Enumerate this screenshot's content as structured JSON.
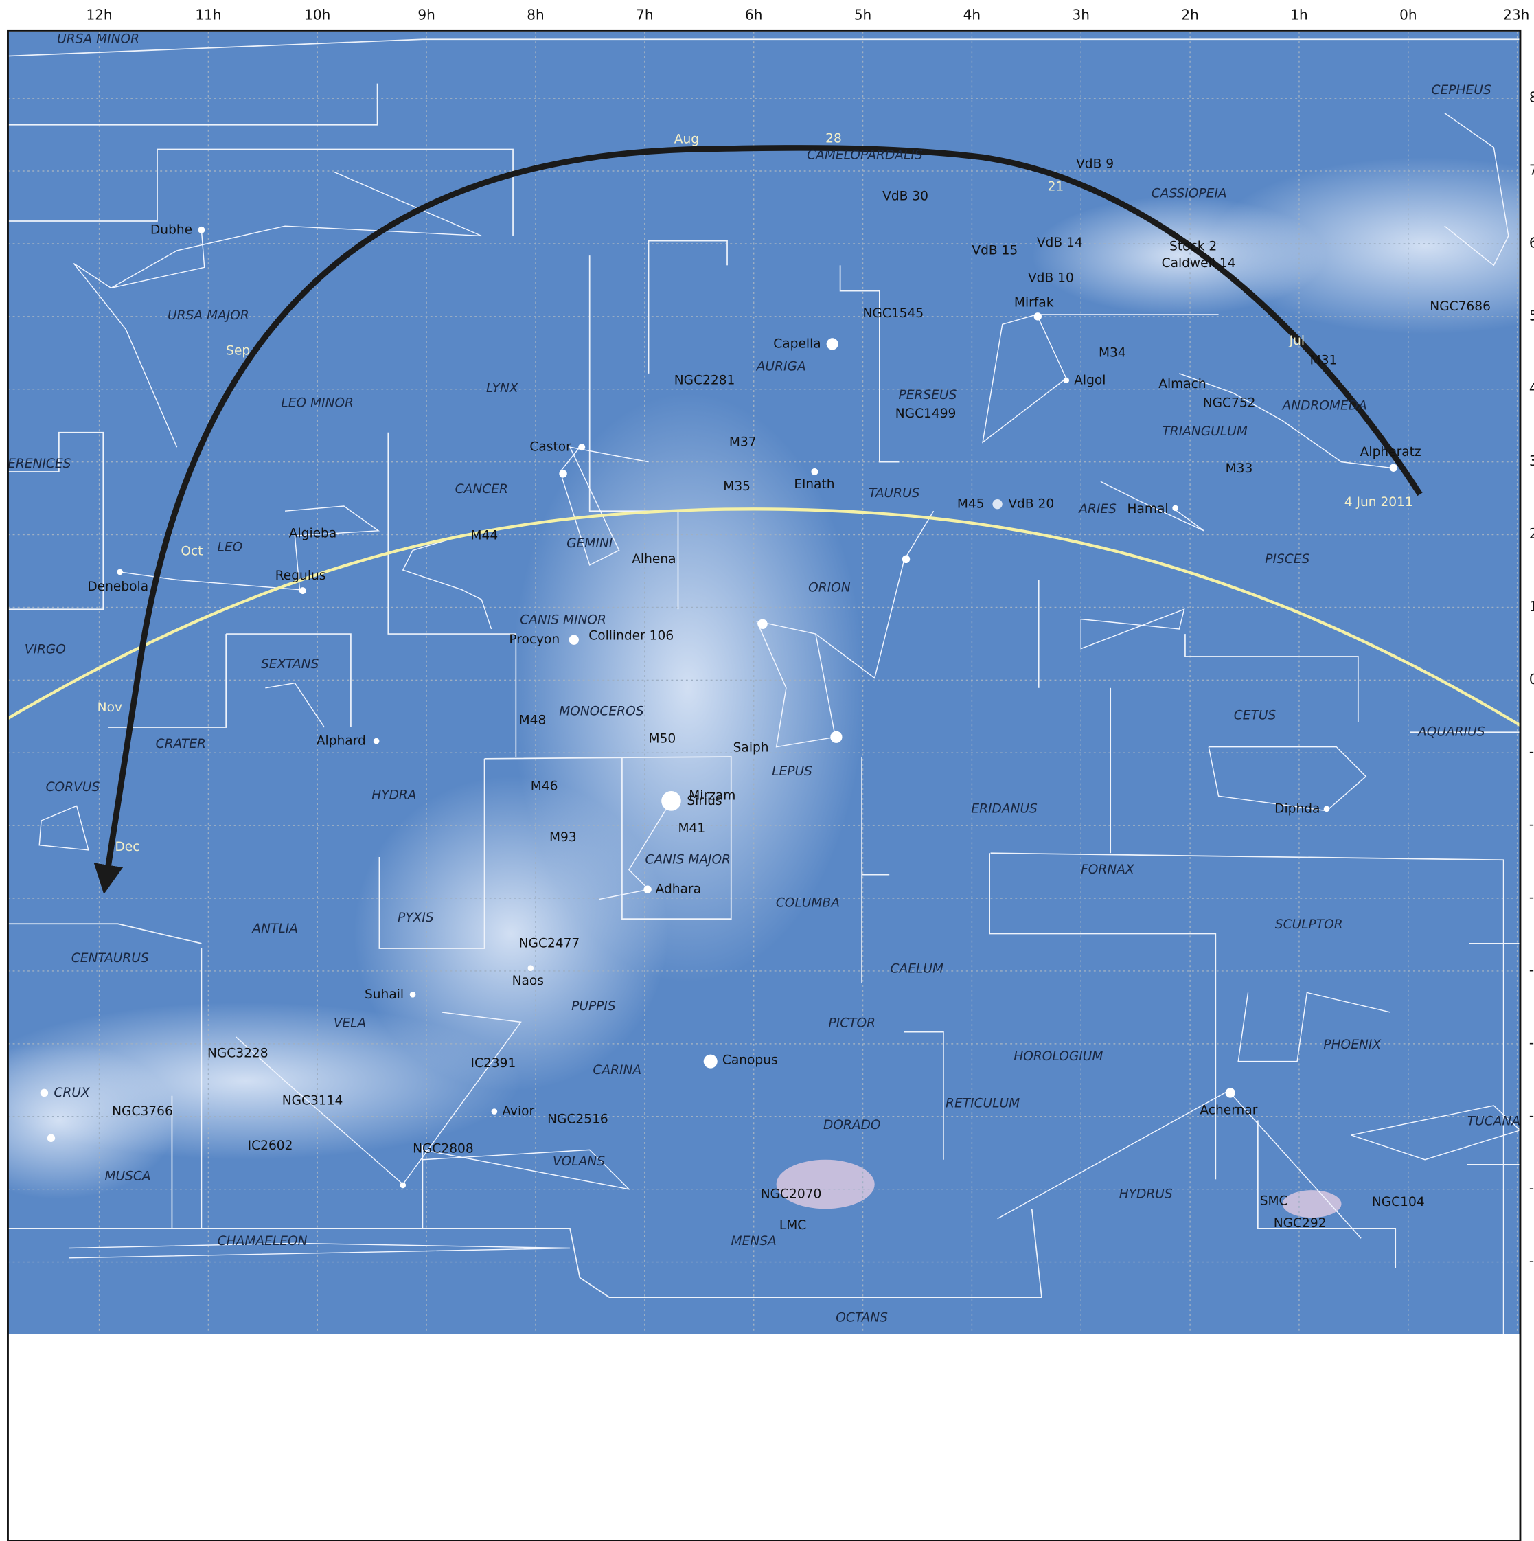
{
  "ra_labels": [
    "12h",
    "11h",
    "10h",
    "9h",
    "8h",
    "7h",
    "6h",
    "5h",
    "4h",
    "3h",
    "2h",
    "1h",
    "0h",
    "23h"
  ],
  "dec_labels": [
    "8",
    "7",
    "6",
    "5",
    "4",
    "3",
    "2",
    "1",
    "0",
    "-",
    "-",
    "-",
    "-",
    "-",
    "-",
    "-",
    "-"
  ],
  "constellations": [
    "URSA MINOR",
    "CEPHEUS",
    "CAMELOPARDALIS",
    "CASSIOPEIA",
    "URSA MAJOR",
    "LYNX",
    "LEO MINOR",
    "AURIGA",
    "PERSEUS",
    "ANDROMEDA",
    "TRIANGULUM",
    "ERENICES",
    "CANCER",
    "TAURUS",
    "ARIES",
    "GEMINI",
    "LEO",
    "PISCES",
    "ORION",
    "CANIS MINOR",
    "VIRGO",
    "SEXTANS",
    "MONOCEROS",
    "CETUS",
    "AQUARIUS",
    "CRATER",
    "LEPUS",
    "CORVUS",
    "HYDRA",
    "ERIDANUS",
    "CANIS MAJOR",
    "FORNAX",
    "COLUMBA",
    "PYXIS",
    "SCULPTOR",
    "ANTLIA",
    "CENTAURUS",
    "CAELUM",
    "PUPPIS",
    "VELA",
    "PICTOR",
    "PHOENIX",
    "HOROLOGIUM",
    "CARINA",
    "CRUX",
    "RETICULUM",
    "DORADO",
    "TUCANA",
    "VOLANS",
    "MUSCA",
    "HYDRUS",
    "CHAMAELEON",
    "MENSA",
    "OCTANS"
  ],
  "objects": [
    "Dubhe",
    "VdB 30",
    "VdB 9",
    "VdB 15",
    "VdB 14",
    "Stock 2",
    "Caldwell 14",
    "VdB 10",
    "Mirfak",
    "NGC1545",
    "NGC7686",
    "Capella",
    "NGC2281",
    "M34",
    "Algol",
    "Almach",
    "NGC752",
    "NGC1499",
    "M37",
    "Castor",
    "M31",
    "Alpheratz",
    "M33",
    "M35",
    "Elnath",
    "M45",
    "VdB 20",
    "Hamal",
    "Algieba",
    "M44",
    "Alhena",
    "Regulus",
    "Denebola",
    "Procyon",
    "Collinder 106",
    "M48",
    "Alphard",
    "M50",
    "Saiph",
    "M46",
    "Mirzam",
    "Sirius",
    "M41",
    "Diphda",
    "M93",
    "Adhara",
    "NGC2477",
    "Naos",
    "Suhail",
    "NGC3228",
    "IC2391",
    "Canopus",
    "NGC3114",
    "NGC3766",
    "Avior",
    "NGC2516",
    "Achernar",
    "IC2602",
    "NGC2808",
    "NGC2070",
    "SMC",
    "NGC104",
    "LMC",
    "NGC292"
  ],
  "dates": [
    "Aug",
    "28",
    "21",
    "Sep",
    "Oct",
    "Nov",
    "Dec",
    "Jul",
    "4 Jun 2011"
  ]
}
